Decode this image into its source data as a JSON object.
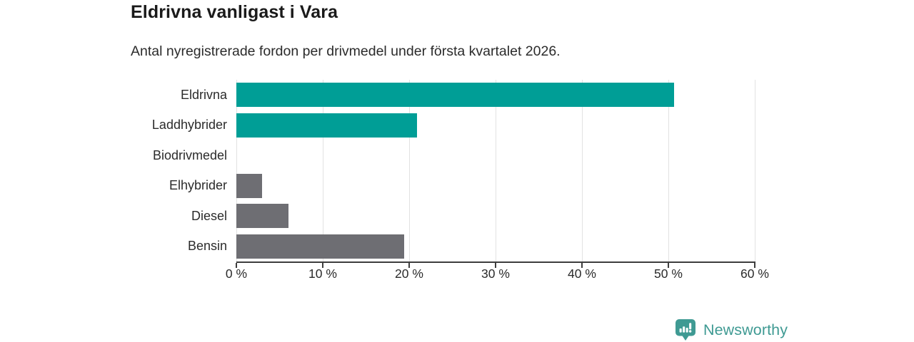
{
  "chart_data": {
    "type": "bar",
    "orientation": "horizontal",
    "title": "Eldrivna vanligast i Vara",
    "subtitle": "Antal nyregistrerade fordon per drivmedel under första kvartalet 2026.",
    "categories": [
      "Eldrivna",
      "Laddhybrider",
      "Biodrivmedel",
      "Elhybrider",
      "Diesel",
      "Bensin"
    ],
    "values": [
      50.7,
      20.9,
      0,
      3.0,
      6.0,
      19.4
    ],
    "unit": "%",
    "xlabel": "",
    "ylabel": "",
    "xlim": [
      0,
      60
    ],
    "xticks": [
      0,
      10,
      20,
      30,
      40,
      50,
      60
    ],
    "xtick_labels": [
      "0 %",
      "10 %",
      "20 %",
      "30 %",
      "40 %",
      "50 %",
      "60 %"
    ],
    "grid": "vertical",
    "legend": "none",
    "bar_colors": [
      "#009e96",
      "#009e96",
      "#6e6e73",
      "#6e6e73",
      "#6e6e73",
      "#6e6e73"
    ]
  },
  "colors": {
    "accent_teal": "#009e96",
    "neutral_gray": "#6e6e73",
    "axis": "#3d3d3d",
    "gridline": "#e2e2e2",
    "brand_teal": "#3f9a93",
    "title_text": "#1a1a1a",
    "body_text": "#2b2b2b"
  },
  "footer": {
    "brand": "Newsworthy",
    "brand_icon": "newsworthy-bar-chart-bubble-icon"
  }
}
